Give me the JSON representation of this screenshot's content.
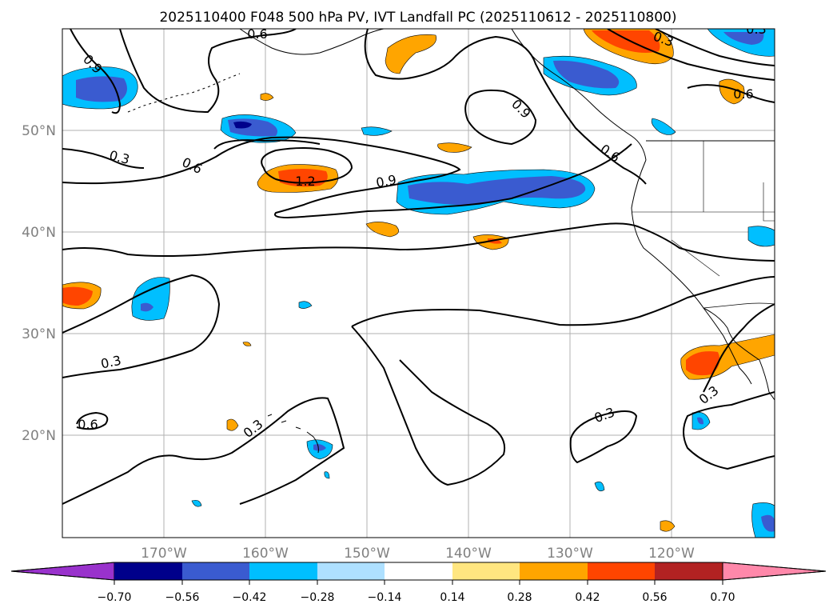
{
  "title": "2025110400 F048 500 hPa PV, IVT Landfall PC (2025110612 - 2025110800)",
  "axes": {
    "lon_labels": [
      "170°W",
      "160°W",
      "150°W",
      "140°W",
      "130°W",
      "120°W"
    ],
    "lat_labels": [
      "50°N",
      "40°N",
      "30°N",
      "20°N"
    ],
    "lon_values": [
      -170,
      -160,
      -150,
      -140,
      -130,
      -120
    ],
    "lat_values": [
      50,
      40,
      30,
      20
    ],
    "lon_range": [
      -180,
      -110
    ],
    "lat_range": [
      10,
      60
    ]
  },
  "contour_labels": [
    "0.9",
    "0.6",
    "0.3",
    "0.3",
    "0.6",
    "1.2",
    "0.9",
    "0.9",
    "0.6",
    "0.3",
    "0.6",
    "0.6",
    "0.3",
    "0.3",
    "0.3",
    "0.3"
  ],
  "colorbar": {
    "labels": [
      "−0.70",
      "−0.56",
      "−0.42",
      "−0.28",
      "−0.14",
      "0.14",
      "0.28",
      "0.42",
      "0.56",
      "0.70"
    ],
    "colors": {
      "under": "#9932cc",
      "b1": "#00008b",
      "b2": "#3a5bd0",
      "b3": "#00bfff",
      "b4": "#aee0ff",
      "mid": "#ffffff",
      "b6": "#ffe680",
      "b7": "#ffa500",
      "b8": "#ff4500",
      "b9": "#b22222",
      "over": "#ff88aa"
    }
  }
}
